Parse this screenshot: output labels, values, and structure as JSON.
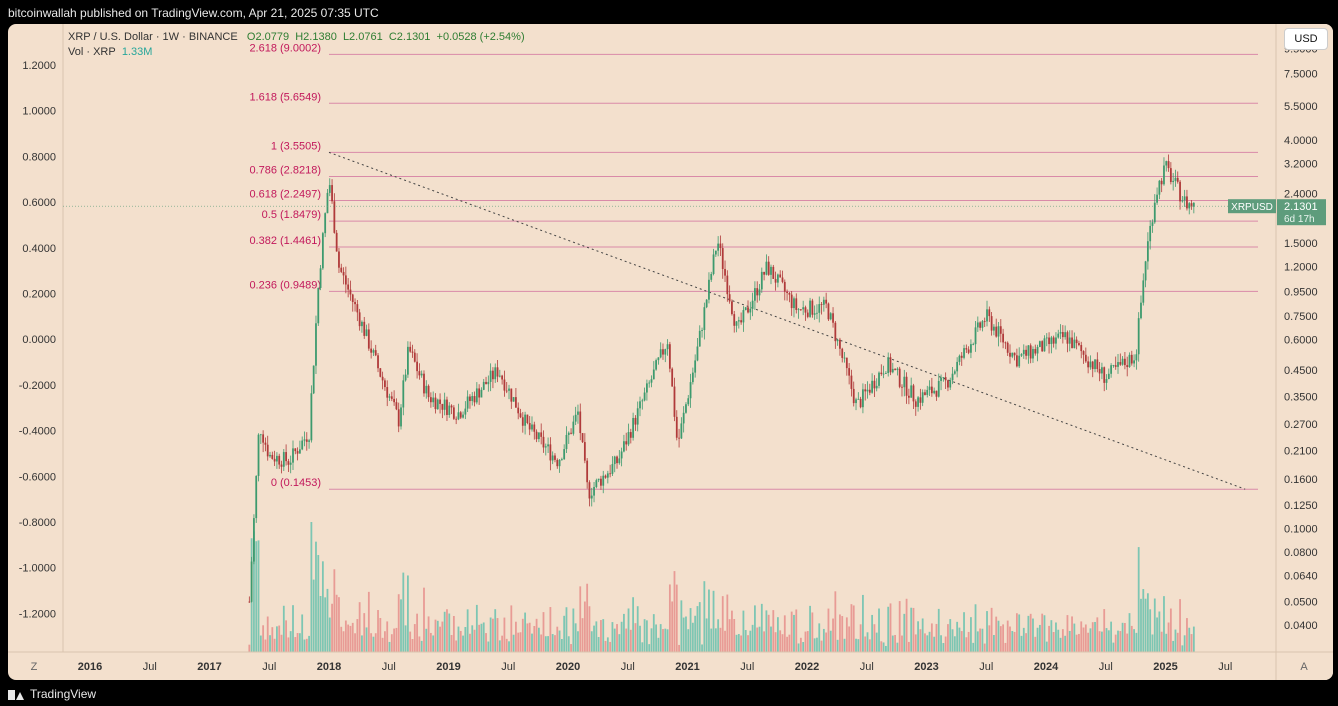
{
  "header": {
    "published_text": "bitcoinwallah published on TradingView.com, Apr 21, 2025 07:35 UTC"
  },
  "legend": {
    "symbol": "XRP / U.S. Dollar · 1W · BINANCE",
    "open": "O2.0779",
    "high": "H2.1380",
    "low": "L2.0761",
    "close": "C2.1301",
    "change": "+0.0528 (+2.54%)",
    "vol_label": "Vol · XRP",
    "vol_value": "1.33M"
  },
  "currency_button": "USD",
  "price_tag": {
    "symbol": "XRPUSD",
    "price": "2.1301",
    "countdown": "6d 17h"
  },
  "footer": {
    "brand": "TradingView"
  },
  "axis_buttons": {
    "left": "Z",
    "right": "A"
  },
  "colors": {
    "background": "#f3e0cd",
    "up": "#3d9a6e",
    "down": "#b03a3a",
    "fib_line": "#d98aa8",
    "fib_text": "#c2185b",
    "vol_up": "#7dc6b3",
    "vol_down": "#e89b95",
    "tag": "#5e9c7c"
  },
  "chart_data": {
    "type": "candlestick",
    "title": "XRP / U.S. Dollar · 1W · BINANCE",
    "y_scale": "log",
    "right_axis_ticks": [
      "9.5000",
      "7.5000",
      "5.5000",
      "4.0000",
      "3.2000",
      "2.4000",
      "1.5000",
      "1.2000",
      "0.9500",
      "0.7500",
      "0.6000",
      "0.4500",
      "0.3500",
      "0.2700",
      "0.2100",
      "0.1600",
      "0.1250",
      "0.1000",
      "0.0800",
      "0.0640",
      "0.0500",
      "0.0400"
    ],
    "left_axis_ticks": [
      "1.2000",
      "1.0000",
      "0.8000",
      "0.6000",
      "0.4000",
      "0.2000",
      "0.0000",
      "-0.2000",
      "-0.4000",
      "-0.6000",
      "-0.8000",
      "-1.0000",
      "-1.2000"
    ],
    "x_ticks": [
      "2016",
      "Jul",
      "2017",
      "Jul",
      "2018",
      "Jul",
      "2019",
      "Jul",
      "2020",
      "Jul",
      "2021",
      "Jul",
      "2022",
      "Jul",
      "2023",
      "Jul",
      "2024",
      "Jul",
      "2025",
      "Jul"
    ],
    "fib_levels": [
      {
        "label": "2.618 (9.0002)",
        "price": 9.0002
      },
      {
        "label": "1.618 (5.6549)",
        "price": 5.6549
      },
      {
        "label": "1 (3.5505)",
        "price": 3.5505
      },
      {
        "label": "0.786 (2.8218)",
        "price": 2.8218
      },
      {
        "label": "0.618 (2.2497)",
        "price": 2.2497
      },
      {
        "label": "0.5 (1.8479)",
        "price": 1.8479
      },
      {
        "label": "0.382 (1.4461)",
        "price": 1.4461
      },
      {
        "label": "0.236 (0.9489)",
        "price": 0.9489
      },
      {
        "label": "0 (0.1453)",
        "price": 0.1453
      }
    ],
    "trendline": {
      "from": {
        "date": "2018-01",
        "price": 3.5505
      },
      "to": {
        "date": "2025-09",
        "price": 0.1453
      }
    },
    "price_path": [
      {
        "date": "2017-05",
        "price": 0.05
      },
      {
        "date": "2017-06",
        "price": 0.27
      },
      {
        "date": "2017-07",
        "price": 0.2
      },
      {
        "date": "2017-09",
        "price": 0.19
      },
      {
        "date": "2017-11",
        "price": 0.25
      },
      {
        "date": "2017-12",
        "price": 1.1
      },
      {
        "date": "2018-01",
        "price": 2.8
      },
      {
        "date": "2018-02",
        "price": 1.2
      },
      {
        "date": "2018-04",
        "price": 0.75
      },
      {
        "date": "2018-06",
        "price": 0.45
      },
      {
        "date": "2018-08",
        "price": 0.28
      },
      {
        "date": "2018-09",
        "price": 0.55
      },
      {
        "date": "2018-11",
        "price": 0.35
      },
      {
        "date": "2019-02",
        "price": 0.3
      },
      {
        "date": "2019-06",
        "price": 0.45
      },
      {
        "date": "2019-09",
        "price": 0.26
      },
      {
        "date": "2019-12",
        "price": 0.19
      },
      {
        "date": "2020-02",
        "price": 0.3
      },
      {
        "date": "2020-03",
        "price": 0.14
      },
      {
        "date": "2020-06",
        "price": 0.19
      },
      {
        "date": "2020-08",
        "price": 0.3
      },
      {
        "date": "2020-11",
        "price": 0.6
      },
      {
        "date": "2020-12",
        "price": 0.22
      },
      {
        "date": "2021-02",
        "price": 0.55
      },
      {
        "date": "2021-04",
        "price": 1.55
      },
      {
        "date": "2021-06",
        "price": 0.65
      },
      {
        "date": "2021-09",
        "price": 1.2
      },
      {
        "date": "2021-12",
        "price": 0.8
      },
      {
        "date": "2022-03",
        "price": 0.82
      },
      {
        "date": "2022-06",
        "price": 0.32
      },
      {
        "date": "2022-09",
        "price": 0.48
      },
      {
        "date": "2022-12",
        "price": 0.34
      },
      {
        "date": "2023-03",
        "price": 0.4
      },
      {
        "date": "2023-07",
        "price": 0.75
      },
      {
        "date": "2023-10",
        "price": 0.5
      },
      {
        "date": "2024-03",
        "price": 0.62
      },
      {
        "date": "2024-07",
        "price": 0.42
      },
      {
        "date": "2024-10",
        "price": 0.52
      },
      {
        "date": "2024-11",
        "price": 1.3
      },
      {
        "date": "2024-12",
        "price": 2.4
      },
      {
        "date": "2025-01",
        "price": 3.1
      },
      {
        "date": "2025-02",
        "price": 2.6
      },
      {
        "date": "2025-03",
        "price": 2.2
      },
      {
        "date": "2025-04",
        "price": 2.1301
      }
    ]
  }
}
